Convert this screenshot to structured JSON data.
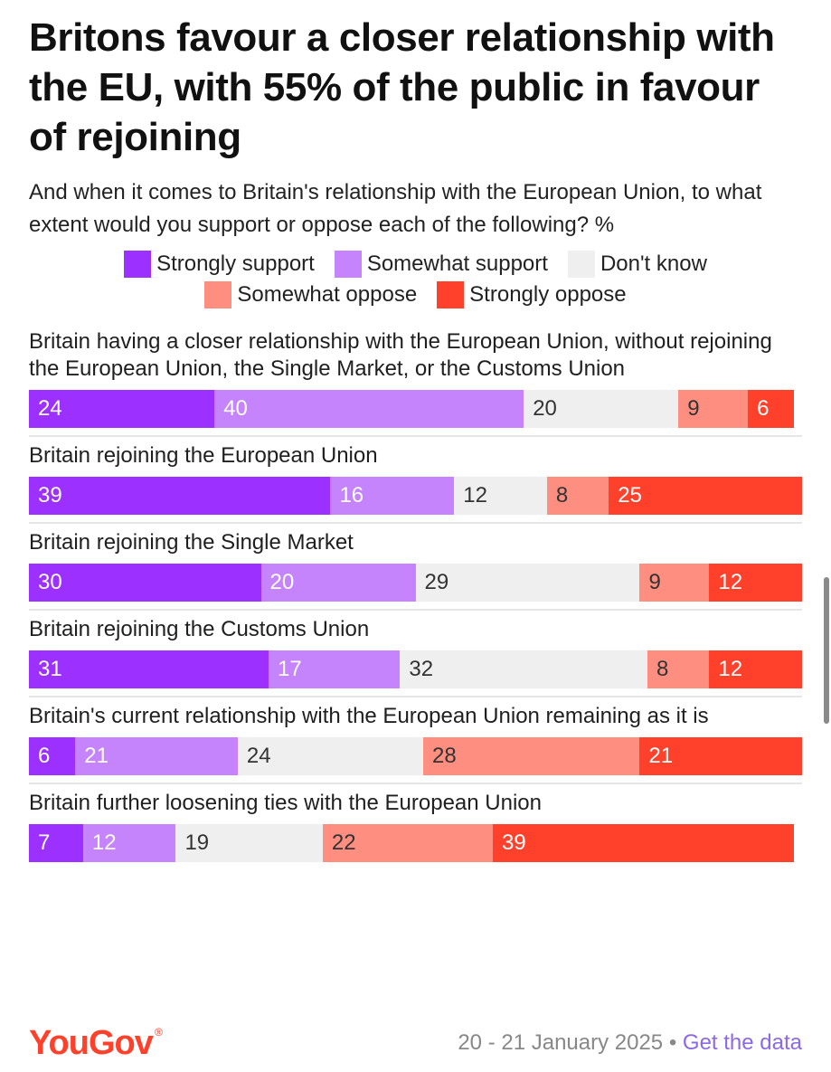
{
  "title": "Britons favour a closer relationship with the EU, with 55% of the public in favour of rejoining",
  "subtitle": "And when it comes to Britain's relationship with the European Union, to what extent would you support or oppose each of the following? %",
  "colors": {
    "strongly_support": "#9b30ff",
    "somewhat_support": "#c584fb",
    "dont_know": "#efefef",
    "somewhat_oppose": "#fd8e80",
    "strongly_oppose": "#ff412c"
  },
  "chart_data": {
    "type": "bar",
    "stacked": true,
    "orientation": "horizontal",
    "legend_position": "top-center",
    "legend": [
      "Strongly support",
      "Somewhat support",
      "Don't know",
      "Somewhat oppose",
      "Strongly oppose"
    ],
    "categories": [
      "Britain having a closer relationship with the European Union, without rejoining the European Union, the Single Market, or the Customs Union",
      "Britain rejoining the European Union",
      "Britain rejoining the Single Market",
      "Britain rejoining the Customs Union",
      "Britain's current relationship with the European Union remaining as it is",
      "Britain further loosening ties with the European Union"
    ],
    "series": [
      {
        "name": "Strongly support",
        "values": [
          24,
          39,
          30,
          31,
          6,
          7
        ]
      },
      {
        "name": "Somewhat support",
        "values": [
          40,
          16,
          20,
          17,
          21,
          12
        ]
      },
      {
        "name": "Don't know",
        "values": [
          20,
          12,
          29,
          32,
          24,
          19
        ]
      },
      {
        "name": "Somewhat oppose",
        "values": [
          9,
          8,
          9,
          8,
          28,
          22
        ]
      },
      {
        "name": "Strongly oppose",
        "values": [
          6,
          25,
          12,
          12,
          21,
          39
        ]
      }
    ],
    "xlim": [
      0,
      100
    ]
  },
  "footer": {
    "logo": "YouGov",
    "logo_mark": "®",
    "date": "20 - 21 January 2025",
    "separator": "•",
    "link": "Get the data"
  }
}
